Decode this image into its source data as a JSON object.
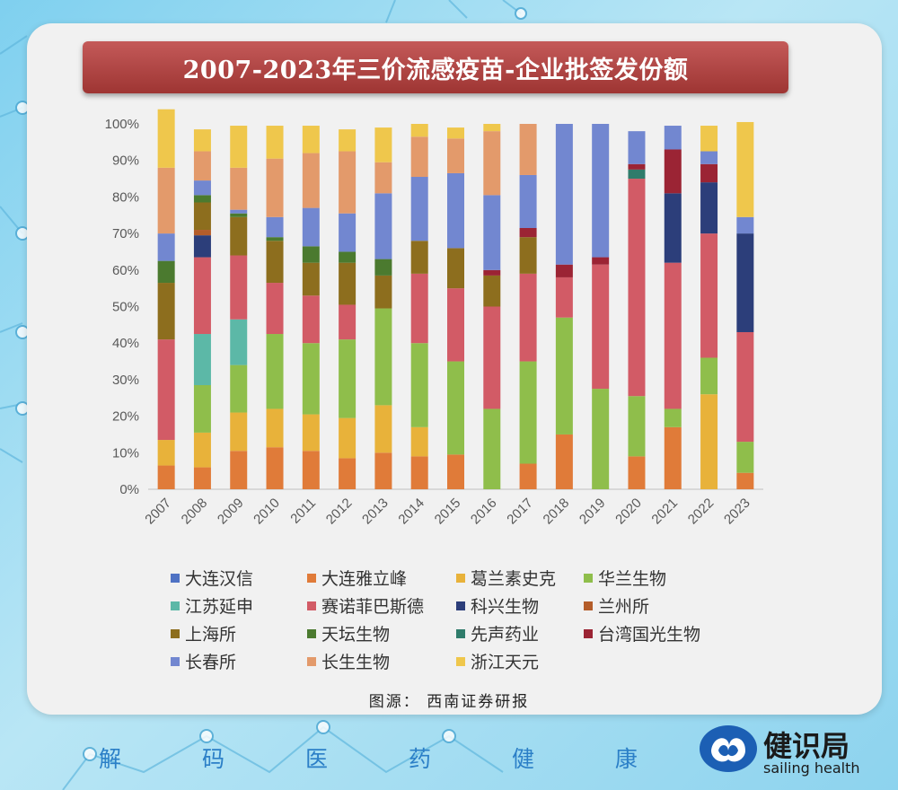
{
  "title": "2007-2023年三价流感疫苗-企业批签发份额",
  "source": "图源： 西南证券研报",
  "footer": [
    "解",
    "码",
    "医",
    "药",
    "健",
    "康"
  ],
  "brand": {
    "name": "健识局",
    "sub": "sailing health"
  },
  "chart_data": {
    "type": "bar",
    "stacked": true,
    "categories": [
      "2007",
      "2008",
      "2009",
      "2010",
      "2011",
      "2012",
      "2013",
      "2014",
      "2015",
      "2016",
      "2017",
      "2018",
      "2019",
      "2020",
      "2021",
      "2022",
      "2023"
    ],
    "ylim": [
      0,
      100
    ],
    "yticks": [
      "0%",
      "10%",
      "20%",
      "30%",
      "40%",
      "50%",
      "60%",
      "70%",
      "80%",
      "90%",
      "100%"
    ],
    "legend_position": "bottom",
    "series": [
      {
        "name": "大连汉信",
        "color": "#4f72c4",
        "values": [
          0,
          0,
          0,
          0,
          0,
          0,
          0,
          0,
          0,
          0,
          0,
          0,
          0,
          0,
          0,
          0,
          0
        ]
      },
      {
        "name": "大连雅立峰",
        "color": "#e07b39",
        "values": [
          6.5,
          6,
          10.5,
          11.5,
          10.5,
          8.5,
          10,
          9,
          9.5,
          0,
          7,
          15,
          0,
          9,
          17,
          0,
          4.5
        ]
      },
      {
        "name": "葛兰素史克",
        "color": "#e8b23a",
        "values": [
          7,
          9.5,
          10.5,
          10.5,
          10,
          11,
          13,
          8,
          0,
          0,
          0,
          0,
          0,
          0,
          0,
          26,
          0
        ]
      },
      {
        "name": "华兰生物",
        "color": "#8fbe4b",
        "values": [
          0,
          13,
          13,
          20.5,
          19.5,
          21.5,
          26.5,
          23,
          25.5,
          22,
          28,
          32,
          27.5,
          16.5,
          5,
          10,
          8.5
        ]
      },
      {
        "name": "江苏延申",
        "color": "#5cb8a7",
        "values": [
          0,
          14,
          12.5,
          0,
          0,
          0,
          0,
          0,
          0,
          0,
          0,
          0,
          0,
          0,
          0,
          0,
          0
        ]
      },
      {
        "name": "赛诺菲巴斯德",
        "color": "#d25b66",
        "values": [
          27.5,
          21,
          17.5,
          14,
          13,
          9.5,
          0,
          19,
          20,
          28,
          24,
          11,
          34,
          59.5,
          40,
          34,
          30
        ]
      },
      {
        "name": "科兴生物",
        "color": "#2c3e7a",
        "values": [
          0,
          6,
          0,
          0,
          0,
          0,
          0,
          0,
          0,
          0,
          0,
          0,
          0,
          0,
          19,
          14,
          27
        ]
      },
      {
        "name": "兰州所",
        "color": "#b45d2a",
        "values": [
          0,
          1.5,
          0,
          0,
          0,
          0,
          0,
          0,
          0,
          0,
          0,
          0,
          0,
          0,
          0,
          0,
          0
        ]
      },
      {
        "name": "上海所",
        "color": "#8d6e1e",
        "values": [
          15.5,
          7.5,
          10.5,
          11.5,
          9,
          11.5,
          9,
          9,
          11,
          8.5,
          10,
          0,
          0,
          0,
          0,
          0,
          0
        ]
      },
      {
        "name": "天坛生物",
        "color": "#4b7a2f",
        "values": [
          6,
          2,
          1,
          1,
          4.5,
          3,
          4.5,
          0,
          0,
          0,
          0,
          0,
          0,
          0,
          0,
          0,
          0
        ]
      },
      {
        "name": "先声药业",
        "color": "#2f7c6b",
        "values": [
          0,
          0,
          0,
          0,
          0,
          0,
          0,
          0,
          0,
          0,
          0,
          0,
          0,
          2.5,
          0,
          0,
          0
        ]
      },
      {
        "name": "台湾国光生物",
        "color": "#9b2434",
        "values": [
          0,
          0,
          0,
          0,
          0,
          0,
          0,
          0,
          0,
          1.5,
          2.5,
          3.5,
          2,
          1.5,
          12,
          5,
          0
        ]
      },
      {
        "name": "长春所",
        "color": "#7287d0",
        "values": [
          7.5,
          4,
          1,
          5.5,
          10.5,
          10.5,
          18,
          17.5,
          20.5,
          20.5,
          14.5,
          38.5,
          36.5,
          9,
          6.5,
          3.5,
          4.5
        ]
      },
      {
        "name": "长生生物",
        "color": "#e39a6b",
        "values": [
          18,
          8,
          11.5,
          16,
          15,
          17,
          8.5,
          11,
          9.5,
          17.5,
          14,
          0,
          0,
          0,
          0,
          0,
          0
        ]
      },
      {
        "name": "浙江天元",
        "color": "#efc74c",
        "values": [
          16,
          6,
          11.5,
          9,
          7.5,
          6,
          9.5,
          3.5,
          3,
          2,
          0,
          0,
          0,
          0,
          0,
          7,
          26
        ]
      }
    ]
  }
}
